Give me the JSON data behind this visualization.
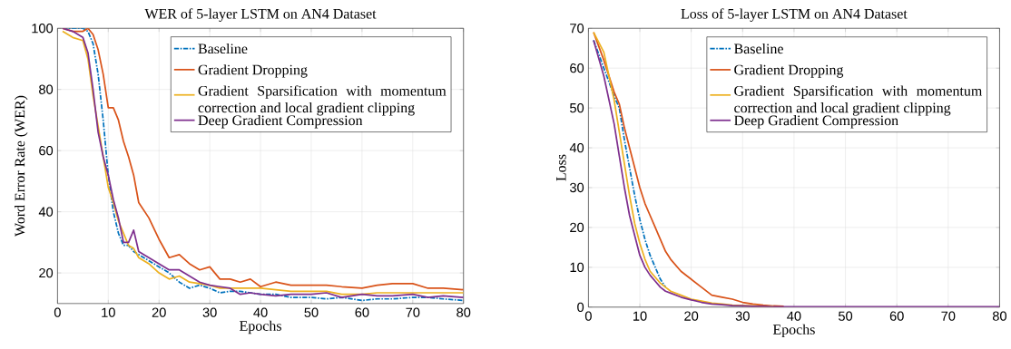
{
  "chart_data": [
    {
      "type": "line",
      "title": "WER of 5-layer LSTM on AN4 Dataset",
      "xlabel": "Epochs",
      "ylabel": "Word Error Rate (WER)",
      "x": [
        1,
        3,
        5,
        6,
        7,
        8,
        9,
        10,
        11,
        12,
        13,
        14,
        15,
        16,
        18,
        20,
        22,
        24,
        26,
        28,
        30,
        32,
        34,
        36,
        38,
        40,
        43,
        46,
        50,
        53,
        56,
        60,
        63,
        66,
        70,
        73,
        76,
        80
      ],
      "xlim": [
        0,
        80
      ],
      "ylim": [
        10,
        100
      ],
      "xticks": [
        0,
        10,
        20,
        30,
        40,
        50,
        60,
        70,
        80
      ],
      "yticks": [
        20,
        40,
        60,
        80,
        100
      ],
      "grid": true,
      "legend": "top right",
      "series": [
        {
          "name": "Baseline",
          "color": "#0072bd",
          "line_style": "dashed",
          "values": [
            100,
            100,
            100,
            99,
            95,
            85,
            70,
            52,
            40,
            33,
            29,
            29,
            27,
            26,
            24,
            22,
            20,
            17,
            15,
            16,
            15,
            13.5,
            14,
            14,
            13.5,
            13,
            13,
            12,
            12,
            11.5,
            12,
            11,
            11.5,
            11.5,
            12,
            12,
            11.5,
            11
          ]
        },
        {
          "name": "Gradient Dropping",
          "color": "#d95319",
          "line_style": "solid",
          "values": [
            100,
            99,
            99,
            100,
            98,
            93,
            85,
            74,
            74,
            70,
            63,
            58,
            52,
            43,
            38,
            31,
            25,
            26,
            23,
            21,
            22,
            18,
            18,
            17,
            18,
            15.5,
            17,
            16,
            16,
            16,
            15.5,
            15,
            16,
            16.5,
            16.5,
            15,
            15,
            14.5
          ]
        },
        {
          "name": "Gradient Sparsification with momentum correction and local gradient clipping",
          "color": "#edb120",
          "line_style": "solid",
          "values": [
            99,
            97,
            96,
            90,
            78,
            68,
            58,
            48,
            43,
            37,
            33,
            29,
            28,
            25,
            23,
            20,
            18,
            19,
            17,
            16.5,
            16,
            15,
            15,
            15,
            15,
            15,
            14.5,
            14,
            14,
            14,
            13,
            13,
            13.5,
            13.5,
            13.5,
            13.5,
            13.5,
            13.5
          ]
        },
        {
          "name": "Deep Gradient Compression",
          "color": "#7e2f8e",
          "line_style": "solid",
          "values": [
            100,
            99,
            97,
            92,
            80,
            66,
            58,
            52,
            44,
            38,
            30,
            30,
            34,
            27,
            25,
            23,
            21,
            21,
            19,
            17,
            16,
            15.5,
            15,
            13,
            13.5,
            13,
            12.5,
            13,
            13,
            13.5,
            12,
            13,
            12.5,
            12.5,
            13,
            12,
            12.5,
            12
          ]
        }
      ]
    },
    {
      "type": "line",
      "title": "Loss of 5-layer LSTM on AN4 Dataset",
      "xlabel": "Epochs",
      "ylabel": "Loss",
      "x": [
        1,
        3,
        5,
        6,
        7,
        8,
        9,
        10,
        11,
        12,
        13,
        14,
        15,
        16,
        18,
        20,
        22,
        24,
        26,
        28,
        30,
        32,
        34,
        36,
        38,
        40,
        43,
        46,
        50,
        53,
        56,
        60,
        63,
        66,
        70,
        73,
        76,
        80
      ],
      "xlim": [
        0,
        80
      ],
      "ylim": [
        0,
        70
      ],
      "xticks": [
        0,
        10,
        20,
        30,
        40,
        50,
        60,
        70,
        80
      ],
      "yticks": [
        0,
        10,
        20,
        30,
        40,
        50,
        60,
        70
      ],
      "grid": true,
      "legend": "top right",
      "series": [
        {
          "name": "Baseline",
          "color": "#0072bd",
          "line_style": "dashed",
          "values": [
            67,
            60,
            53,
            50,
            42,
            35,
            28,
            22,
            17,
            13,
            10,
            7,
            5,
            null,
            null,
            null,
            null,
            null,
            null,
            null,
            null,
            null,
            null,
            null,
            null,
            null,
            null,
            null,
            null,
            null,
            null,
            null,
            null,
            null,
            null,
            null,
            null,
            null
          ]
        },
        {
          "name": "Gradient Dropping",
          "color": "#d95319",
          "line_style": "solid",
          "values": [
            69,
            62,
            54,
            51,
            45,
            40,
            35,
            30,
            26,
            23,
            20,
            17,
            14,
            12,
            9,
            7,
            5,
            3,
            2.5,
            2,
            1.2,
            0.8,
            0.5,
            0.3,
            0.2,
            null,
            null,
            null,
            null,
            null,
            null,
            null,
            null,
            null,
            null,
            null,
            null,
            null
          ]
        },
        {
          "name": "Gradient Sparsification with momentum correction and local gradient clipping",
          "color": "#edb120",
          "line_style": "solid",
          "values": [
            69,
            64,
            52,
            44,
            36,
            28,
            21,
            16,
            12,
            9,
            7.5,
            6,
            5,
            4,
            3,
            2,
            1.5,
            1,
            0.8,
            0.5,
            0.4,
            0.3,
            0.2,
            0.2,
            null,
            null,
            null,
            null,
            null,
            null,
            null,
            null,
            null,
            null,
            null,
            null,
            null,
            null
          ]
        },
        {
          "name": "Deep Gradient Compression",
          "color": "#7e2f8e",
          "line_style": "solid",
          "values": [
            67,
            58,
            46,
            38,
            30,
            23,
            18,
            13,
            10,
            8,
            6.5,
            5,
            4,
            3.5,
            2.5,
            1.8,
            1.2,
            0.8,
            0.6,
            0.4,
            0.3,
            0.2,
            0.2,
            0.1,
            0.1,
            0.1,
            0.1,
            0.1,
            0.1,
            0.1,
            0.1,
            0.1,
            0.1,
            0.1,
            0.1,
            0.1,
            0.1,
            0.1
          ]
        }
      ]
    }
  ]
}
